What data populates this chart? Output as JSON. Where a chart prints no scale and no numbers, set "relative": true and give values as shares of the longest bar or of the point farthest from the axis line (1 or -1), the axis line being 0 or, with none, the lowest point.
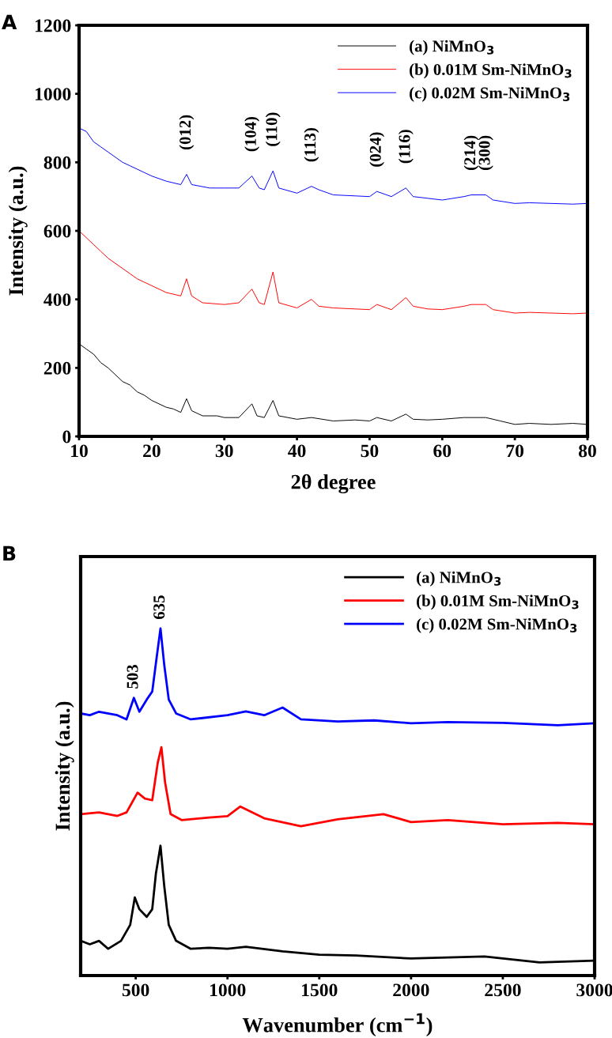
{
  "chart_data": [
    {
      "type": "line",
      "xlabel": "2θ degree",
      "ylabel": "Intensity (a.u.)",
      "xlim": [
        10,
        80
      ],
      "ylim": [
        0,
        1200
      ],
      "xticks": [
        10,
        20,
        30,
        40,
        50,
        60,
        70,
        80
      ],
      "yticks": [
        0,
        200,
        400,
        600,
        800,
        1000,
        1200
      ],
      "grid": false,
      "legend": "top right",
      "marker": "none",
      "line_style": "solid",
      "annotations": [
        "A",
        {
          "text": "(012)",
          "x": 24.8,
          "y": 765
        },
        {
          "text": "(104)",
          "x": 33.8,
          "y": 760
        },
        {
          "text": "(110)",
          "x": 36.7,
          "y": 775
        },
        {
          "text": "(113)",
          "x": 42,
          "y": 730
        },
        {
          "text": "(024)",
          "x": 51,
          "y": 715
        },
        {
          "text": "(116)",
          "x": 55,
          "y": 725
        },
        {
          "text": "(214)",
          "x": 64,
          "y": 705
        },
        {
          "text": "(300)",
          "x": 66,
          "y": 705
        }
      ],
      "series": [
        {
          "name": "(a) NiMnO$_{3}$",
          "color": "#000000",
          "x": [
            10,
            11,
            12,
            13,
            14,
            15,
            16,
            17,
            18,
            19,
            20,
            21,
            22,
            23,
            24,
            24.8,
            25.5,
            27,
            29,
            30,
            32,
            33.8,
            34.5,
            35.5,
            36.7,
            37.5,
            40,
            42,
            45,
            48,
            50,
            51,
            53,
            55,
            56,
            58,
            60,
            63,
            66,
            68,
            70,
            72,
            75,
            78,
            80
          ],
          "values": [
            270,
            255,
            240,
            215,
            200,
            180,
            160,
            150,
            130,
            120,
            105,
            95,
            85,
            80,
            70,
            110,
            75,
            60,
            60,
            55,
            55,
            95,
            60,
            55,
            105,
            60,
            50,
            55,
            45,
            48,
            45,
            55,
            45,
            65,
            50,
            48,
            50,
            55,
            55,
            45,
            35,
            38,
            35,
            38,
            35
          ]
        },
        {
          "name": "(b) 0.01M Sm-NiMnO$_{3}$",
          "color": "#ff0000",
          "x": [
            10,
            11,
            12,
            13,
            14,
            15,
            16,
            17,
            18,
            19,
            20,
            22,
            24,
            24.8,
            25.5,
            27,
            30,
            32,
            33.8,
            34.8,
            35.5,
            36.7,
            37.5,
            40,
            42,
            43,
            45,
            48,
            50,
            51,
            53,
            55,
            56,
            58,
            60,
            63,
            64,
            66,
            67,
            70,
            72,
            75,
            78,
            80
          ],
          "values": [
            600,
            580,
            560,
            540,
            520,
            505,
            490,
            475,
            460,
            450,
            440,
            420,
            410,
            460,
            410,
            390,
            385,
            390,
            430,
            390,
            385,
            480,
            390,
            375,
            400,
            380,
            375,
            372,
            370,
            385,
            370,
            405,
            380,
            372,
            370,
            380,
            385,
            385,
            370,
            360,
            362,
            360,
            358,
            360
          ]
        },
        {
          "name": "(c) 0.02M Sm-NiMnO$_{3}$",
          "color": "#0000ff",
          "x": [
            10,
            11,
            12,
            13,
            14,
            15,
            16,
            17,
            18,
            19,
            20,
            22,
            24,
            24.8,
            25.5,
            28,
            30,
            32,
            33.8,
            34.8,
            35.5,
            36.7,
            37.5,
            40,
            42,
            43,
            45,
            48,
            50,
            51,
            53,
            55,
            56,
            58,
            60,
            63,
            64,
            66,
            67,
            70,
            72,
            75,
            78,
            80
          ],
          "values": [
            900,
            890,
            860,
            845,
            830,
            815,
            800,
            790,
            780,
            770,
            760,
            745,
            735,
            765,
            735,
            725,
            725,
            725,
            760,
            725,
            720,
            775,
            725,
            710,
            730,
            720,
            705,
            702,
            700,
            715,
            700,
            725,
            700,
            695,
            690,
            700,
            705,
            705,
            690,
            680,
            682,
            680,
            678,
            680
          ]
        }
      ]
    },
    {
      "type": "line",
      "xlabel": "Wavenumber (cm$^{−1}$)",
      "ylabel": "Intensity (a.u.)",
      "xlim": [
        200,
        3000
      ],
      "xticks": [
        500,
        1000,
        1500,
        2000,
        2500,
        3000
      ],
      "relative": true,
      "tick_labels": "x",
      "grid": false,
      "legend": "top right",
      "marker": "none",
      "line_style": "solid",
      "annotations": [
        "B",
        {
          "text": "503",
          "x": 490,
          "y": 0.8
        },
        {
          "text": "635",
          "x": 635,
          "y": 1.0
        }
      ],
      "series": [
        {
          "name": "(a) NiMnO$_{3}$",
          "color": "#000000",
          "x": [
            200,
            250,
            300,
            350,
            420,
            470,
            495,
            520,
            560,
            590,
            610,
            635,
            655,
            680,
            720,
            800,
            900,
            1000,
            1100,
            1300,
            1500,
            1700,
            2000,
            2200,
            2400,
            2700,
            3000
          ],
          "values": [
            0.1,
            0.09,
            0.1,
            0.077,
            0.1,
            0.146,
            0.225,
            0.191,
            0.169,
            0.191,
            0.294,
            0.374,
            0.26,
            0.146,
            0.1,
            0.077,
            0.08,
            0.077,
            0.083,
            0.07,
            0.06,
            0.058,
            0.049,
            0.052,
            0.055,
            0.038,
            0.043
          ]
        },
        {
          "name": "(b) 0.01M Sm-NiMnO$_{3}$",
          "color": "#ff0000",
          "x": [
            200,
            300,
            400,
            450,
            510,
            550,
            590,
            620,
            640,
            660,
            690,
            750,
            900,
            1000,
            1070,
            1200,
            1400,
            1600,
            1850,
            2000,
            2200,
            2500,
            2800,
            3000
          ],
          "values": [
            0.465,
            0.47,
            0.46,
            0.47,
            0.527,
            0.51,
            0.505,
            0.613,
            0.658,
            0.556,
            0.465,
            0.448,
            0.455,
            0.459,
            0.487,
            0.453,
            0.43,
            0.45,
            0.465,
            0.442,
            0.448,
            0.436,
            0.44,
            0.436
          ]
        },
        {
          "name": "(c) 0.02M Sm-NiMnO$_{3}$",
          "color": "#0000ff",
          "x": [
            200,
            250,
            300,
            400,
            450,
            490,
            520,
            560,
            590,
            615,
            635,
            655,
            680,
            720,
            800,
            1000,
            1100,
            1200,
            1300,
            1400,
            1600,
            1800,
            2000,
            2200,
            2500,
            2800,
            3000
          ],
          "values": [
            0.755,
            0.75,
            0.76,
            0.75,
            0.738,
            0.8,
            0.76,
            0.795,
            0.818,
            0.92,
            1.0,
            0.897,
            0.795,
            0.755,
            0.738,
            0.75,
            0.761,
            0.75,
            0.772,
            0.738,
            0.732,
            0.735,
            0.727,
            0.73,
            0.728,
            0.721,
            0.727
          ]
        }
      ]
    }
  ]
}
